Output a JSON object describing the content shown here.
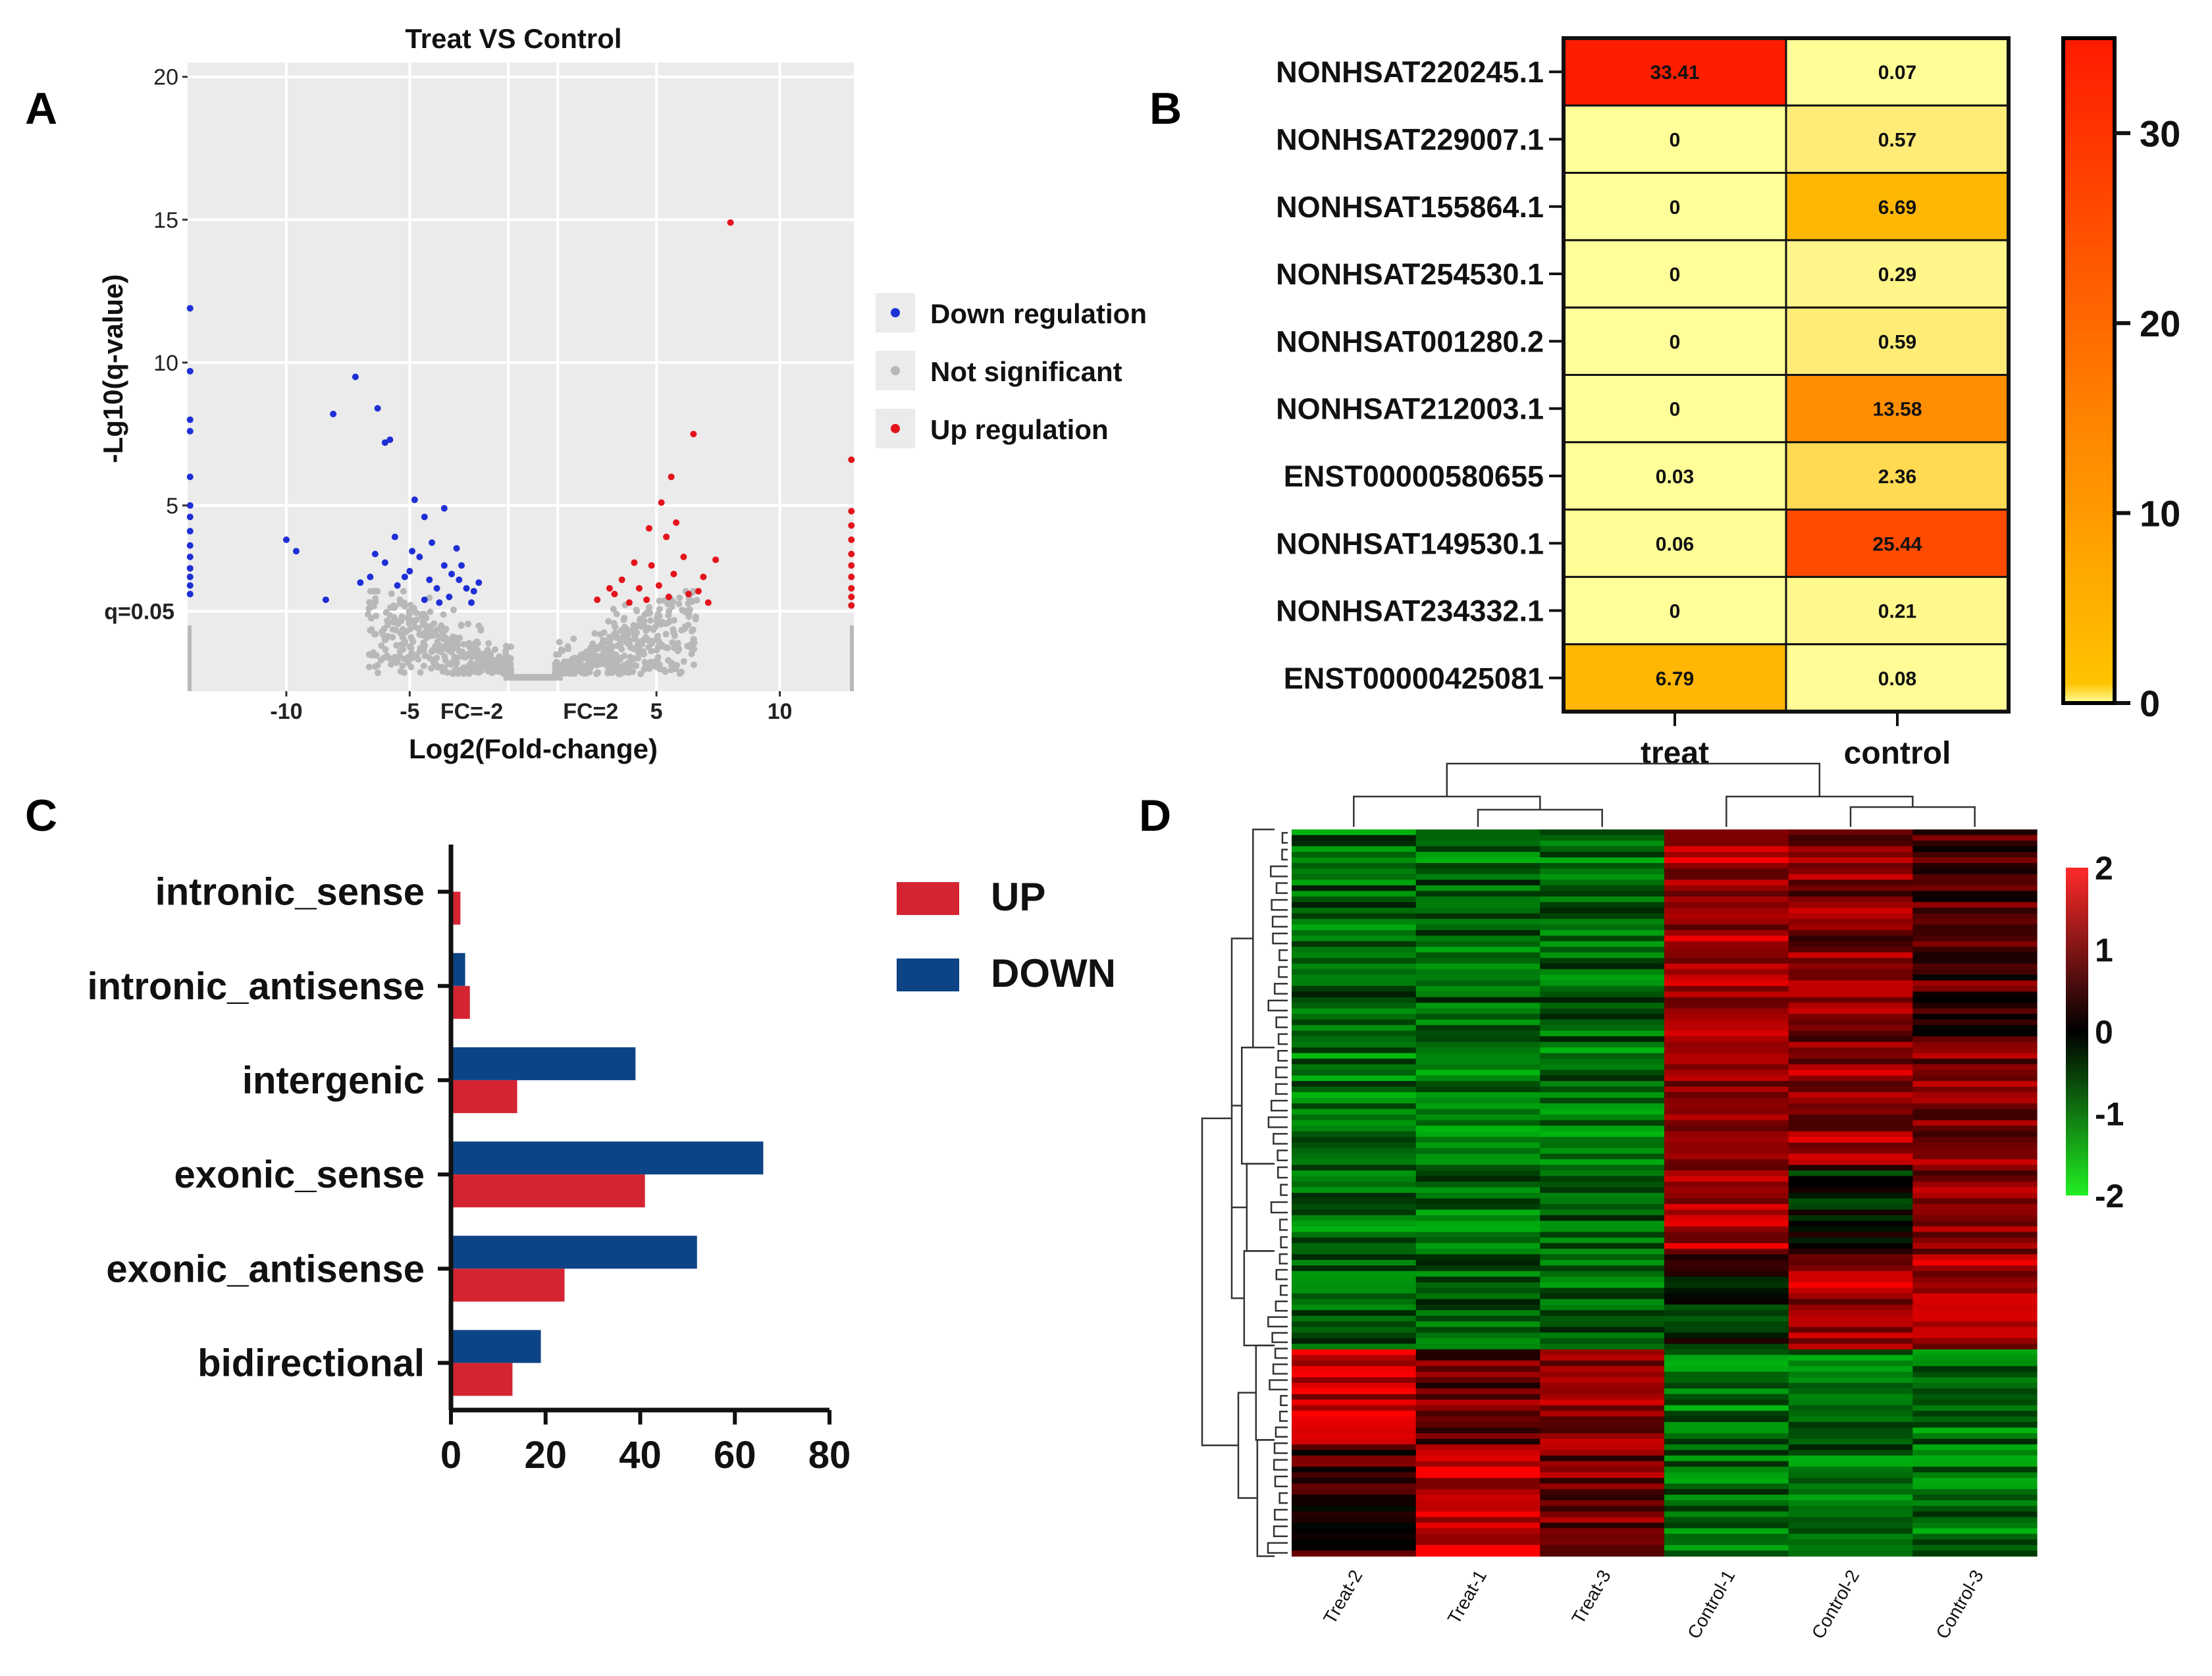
{
  "panel_labels": [
    "A",
    "B",
    "C",
    "D"
  ],
  "colors": {
    "down": "#1f2fd6",
    "ns": "#b8b8b8",
    "up": "#e4141c",
    "panelA_bg": "#ebebeb",
    "bar_up": "#d42432",
    "bar_down": "#0d4485",
    "heat_low": "#ffff9a",
    "heat_mid": "#ff8c00",
    "heat_high": "#ff1a00"
  },
  "chart_data": [
    {
      "id": "volcano",
      "type": "scatter",
      "title": "Treat VS Control",
      "xlabel": "Log2(Fold-change)",
      "ylabel": "-Lg10(q-value)",
      "xlim": [
        -14,
        13
      ],
      "ylim": [
        -1.5,
        20.5
      ],
      "xticks": [
        -10,
        -5,
        5,
        10
      ],
      "yticks": [
        5,
        10,
        15,
        20
      ],
      "hlines": [
        {
          "y": 1.3,
          "label": "q=0.05"
        }
      ],
      "vlines": [
        {
          "x": -1,
          "label": "FC=-2"
        },
        {
          "x": 1,
          "label": "FC=2"
        }
      ],
      "legend": [
        "Down regulation",
        "Not significant",
        "Up regulation"
      ],
      "down": [
        [
          -8.1,
          8.2
        ],
        [
          -7.2,
          9.5
        ],
        [
          -6.3,
          8.4
        ],
        [
          -5.8,
          7.3
        ],
        [
          -6.0,
          7.2
        ],
        [
          -10.0,
          3.8
        ],
        [
          -9.6,
          3.4
        ],
        [
          -8.4,
          1.7
        ],
        [
          -7.0,
          2.3
        ],
        [
          -6.6,
          2.5
        ],
        [
          -6.0,
          3.0
        ],
        [
          -5.5,
          2.2
        ],
        [
          -5.0,
          2.7
        ],
        [
          -4.9,
          3.4
        ],
        [
          -4.6,
          3.2
        ],
        [
          -4.2,
          2.4
        ],
        [
          -3.9,
          2.1
        ],
        [
          -3.6,
          2.9
        ],
        [
          -3.3,
          2.6
        ],
        [
          -3.0,
          2.4
        ],
        [
          -2.7,
          2.1
        ],
        [
          -2.4,
          2.0
        ],
        [
          -4.8,
          5.2
        ],
        [
          -4.4,
          4.6
        ],
        [
          -3.6,
          4.9
        ],
        [
          -3.1,
          3.5
        ],
        [
          -2.2,
          2.3
        ],
        [
          -5.6,
          3.9
        ],
        [
          -4.1,
          3.7
        ],
        [
          -2.9,
          2.9
        ],
        [
          -3.4,
          1.8
        ],
        [
          -4.4,
          1.7
        ],
        [
          -5.2,
          2.5
        ],
        [
          -6.4,
          3.3
        ],
        [
          -2.5,
          1.6
        ],
        [
          -3.8,
          1.6
        ],
        [
          -13.9,
          11.9
        ],
        [
          -13.9,
          9.7
        ],
        [
          -13.9,
          8.0
        ],
        [
          -13.9,
          7.6
        ],
        [
          -13.9,
          6.0
        ],
        [
          -13.9,
          5.0
        ],
        [
          -13.9,
          4.6
        ],
        [
          -13.9,
          4.1
        ],
        [
          -13.9,
          3.6
        ],
        [
          -13.9,
          3.2
        ],
        [
          -13.9,
          2.8
        ],
        [
          -13.9,
          2.5
        ],
        [
          -13.9,
          2.2
        ],
        [
          -13.9,
          1.9
        ]
      ],
      "up": [
        [
          8.0,
          14.9
        ],
        [
          6.5,
          7.5
        ],
        [
          5.6,
          6.0
        ],
        [
          5.2,
          5.1
        ],
        [
          4.7,
          4.2
        ],
        [
          5.4,
          3.9
        ],
        [
          4.1,
          3.0
        ],
        [
          4.8,
          2.9
        ],
        [
          3.6,
          2.4
        ],
        [
          4.3,
          2.1
        ],
        [
          3.3,
          1.9
        ],
        [
          5.1,
          2.2
        ],
        [
          5.7,
          2.6
        ],
        [
          6.1,
          3.2
        ],
        [
          6.9,
          2.5
        ],
        [
          7.4,
          3.1
        ],
        [
          5.5,
          1.8
        ],
        [
          6.3,
          1.9
        ],
        [
          2.6,
          1.7
        ],
        [
          3.9,
          1.6
        ],
        [
          6.7,
          2.0
        ],
        [
          4.6,
          1.7
        ],
        [
          5.8,
          4.4
        ],
        [
          3.1,
          2.1
        ],
        [
          7.1,
          1.6
        ],
        [
          12.9,
          6.6
        ],
        [
          12.9,
          4.8
        ],
        [
          12.9,
          4.3
        ],
        [
          12.9,
          3.8
        ],
        [
          12.9,
          3.3
        ],
        [
          12.9,
          2.9
        ],
        [
          12.9,
          2.5
        ],
        [
          12.9,
          2.1
        ],
        [
          12.9,
          1.8
        ],
        [
          12.9,
          1.5
        ]
      ]
    },
    {
      "id": "expression-heatmap",
      "type": "heatmap",
      "rows": [
        "NONHSAT220245.1",
        "NONHSAT229007.1",
        "NONHSAT155864.1",
        "NONHSAT254530.1",
        "NONHSAT001280.2",
        "NONHSAT212003.1",
        "ENST00000580655",
        "NONHSAT149530.1",
        "NONHSAT234332.1",
        "ENST00000425081"
      ],
      "columns": [
        "treat",
        "control"
      ],
      "labels": [
        [
          "33.41",
          "0.07"
        ],
        [
          "0",
          "0.57"
        ],
        [
          "0",
          "6.69"
        ],
        [
          "0",
          "0.29"
        ],
        [
          "0",
          "0.59"
        ],
        [
          "0",
          "13.58"
        ],
        [
          "0.03",
          "2.36"
        ],
        [
          "0.06",
          "25.44"
        ],
        [
          "0",
          "0.21"
        ],
        [
          "6.79",
          "0.08"
        ]
      ],
      "values": [
        [
          33.41,
          0.07
        ],
        [
          0,
          0.57
        ],
        [
          0,
          6.69
        ],
        [
          0,
          0.29
        ],
        [
          0,
          0.59
        ],
        [
          0,
          13.58
        ],
        [
          0.03,
          2.36
        ],
        [
          0.06,
          25.44
        ],
        [
          0,
          0.21
        ],
        [
          6.79,
          0.08
        ]
      ],
      "colorbar": {
        "min": 0,
        "max": 35,
        "ticks": [
          0,
          10,
          20,
          30
        ]
      }
    },
    {
      "id": "lncrna-type-bars",
      "type": "bar",
      "orientation": "horizontal",
      "categories": [
        "intronic_sense",
        "intronic_antisense",
        "intergenic",
        "exonic_sense",
        "exonic_antisense",
        "bidirectional"
      ],
      "series": [
        {
          "name": "UP",
          "values": [
            2,
            4,
            14,
            41,
            24,
            13
          ]
        },
        {
          "name": "DOWN",
          "values": [
            0,
            3,
            39,
            66,
            52,
            19
          ]
        }
      ],
      "xlim": [
        0,
        80
      ],
      "xticks": [
        0,
        20,
        40,
        60,
        80
      ]
    },
    {
      "id": "cluster-heatmap",
      "type": "heatmap",
      "columns": [
        "Treat-2",
        "Treat-1",
        "Treat-3",
        "Control-1",
        "Control-2",
        "Control-3"
      ],
      "colorbar": {
        "min": -2,
        "max": 2,
        "ticks": [
          "2",
          "1",
          "0",
          "-1",
          "-2"
        ]
      },
      "row_count": 130
    }
  ]
}
